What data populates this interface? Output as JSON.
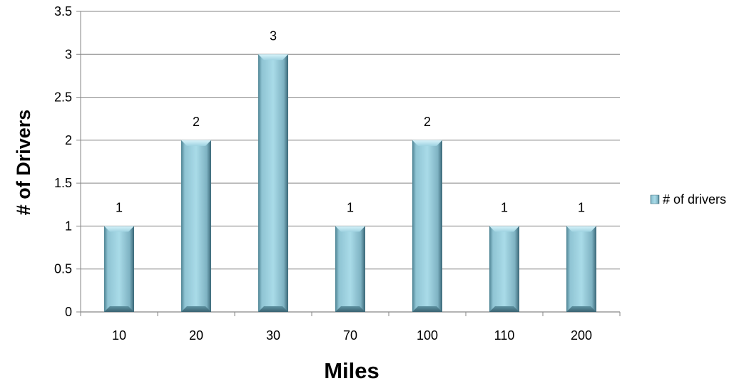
{
  "chart_data": {
    "type": "bar",
    "title": "",
    "xlabel": "Miles",
    "ylabel": "# of Drivers",
    "categories": [
      "10",
      "20",
      "30",
      "70",
      "100",
      "110",
      "200"
    ],
    "series": [
      {
        "name": "# of drivers",
        "values": [
          1,
          2,
          3,
          1,
          2,
          1,
          1
        ]
      }
    ],
    "ylim": [
      0,
      3.5
    ],
    "yticks": [
      "0",
      "0.5",
      "1",
      "1.5",
      "2",
      "2.5",
      "3",
      "3.5"
    ],
    "data_labels": [
      "1",
      "2",
      "3",
      "1",
      "2",
      "1",
      "1"
    ],
    "grid": true,
    "legend_position": "right",
    "colors": {
      "bar": "#8ec9da",
      "bar_dark": "#3f6f7f",
      "grid": "#868686",
      "axis": "#868686"
    }
  }
}
